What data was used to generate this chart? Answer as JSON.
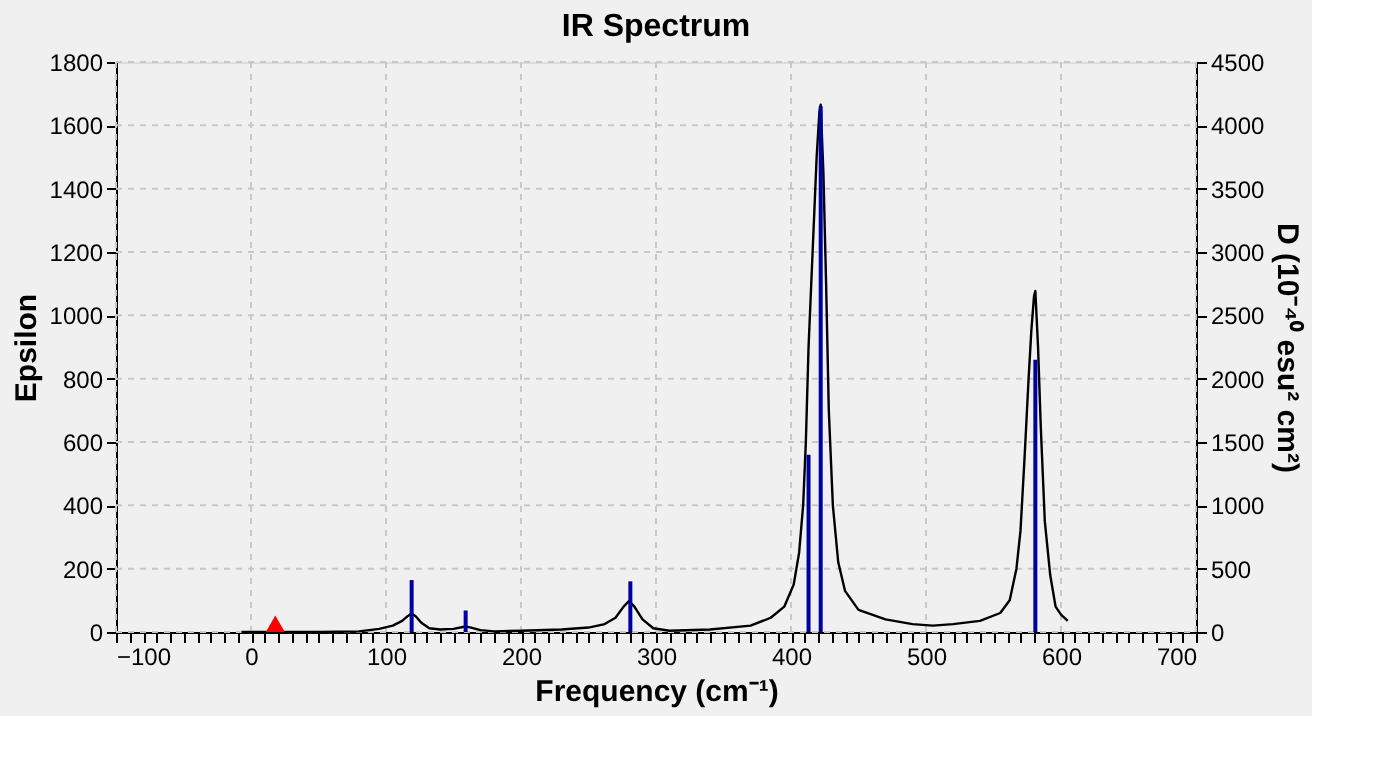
{
  "chart_data": {
    "type": "line",
    "title": "IR Spectrum",
    "xlabel": "Frequency (cm⁻¹)",
    "ylabel": "Epsilon",
    "y2label": "D (10⁻⁴⁰ esu² cm²)",
    "xlim": [
      -100,
      700
    ],
    "xticks": [
      -100,
      0,
      100,
      200,
      300,
      400,
      500,
      600,
      700
    ],
    "ylim": [
      0,
      1800
    ],
    "yticks": [
      0,
      200,
      400,
      600,
      800,
      1000,
      1200,
      1400,
      1600,
      1800
    ],
    "y2lim": [
      0,
      4500
    ],
    "y2ticks": [
      0,
      500,
      1000,
      1500,
      2000,
      2500,
      3000,
      3500,
      4000,
      4500
    ],
    "grid": true,
    "series": [
      {
        "color": "#000000",
        "line_style": "solid",
        "x": [
          -7,
          0,
          50,
          80,
          95,
          105,
          112,
          116,
          119,
          122,
          126,
          132,
          140,
          150,
          156,
          159,
          163,
          170,
          180,
          200,
          230,
          250,
          262,
          270,
          276,
          280,
          284,
          290,
          298,
          310,
          340,
          370,
          385,
          395,
          402,
          406,
          409,
          411,
          413,
          415,
          417,
          419,
          421,
          422,
          424,
          426,
          428,
          431,
          435,
          440,
          450,
          470,
          490,
          505,
          520,
          540,
          555,
          562,
          567,
          570,
          573,
          576,
          578,
          580,
          581,
          583,
          585,
          588,
          592,
          596,
          600,
          605
        ],
        "values": [
          0,
          0,
          0,
          2,
          10,
          20,
          35,
          50,
          58,
          50,
          30,
          12,
          8,
          10,
          15,
          18,
          14,
          6,
          2,
          4,
          8,
          14,
          25,
          45,
          80,
          98,
          80,
          40,
          12,
          4,
          8,
          20,
          45,
          80,
          150,
          250,
          400,
          600,
          900,
          1100,
          1300,
          1500,
          1640,
          1665,
          1450,
          1100,
          700,
          400,
          220,
          130,
          70,
          40,
          25,
          20,
          25,
          35,
          60,
          100,
          200,
          320,
          550,
          800,
          950,
          1060,
          1077,
          900,
          650,
          350,
          180,
          80,
          55,
          35
        ]
      },
      {
        "type": "bar",
        "axis": "y2",
        "color": "#0000a0",
        "x": [
          119,
          159,
          281,
          413,
          422,
          581
        ],
        "values": [
          410,
          170,
          400,
          1400,
          4150,
          2150
        ]
      },
      {
        "type": "scatter",
        "color": "#ff0000",
        "marker": "triangle",
        "x": [
          18
        ],
        "values": [
          26
        ]
      }
    ]
  }
}
